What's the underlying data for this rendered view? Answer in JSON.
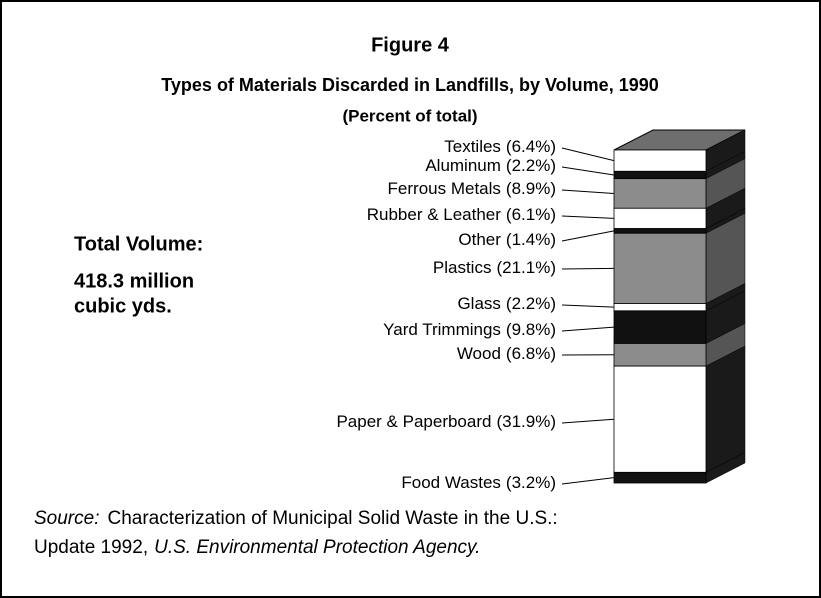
{
  "chart_data": {
    "type": "stacked-bar-3d",
    "title": "Figure 4",
    "subtitle": "Types of Materials Discarded in Landfills, by Volume, 1990",
    "unit_note": "(Percent of total)",
    "annotation": [
      "Total Volume:",
      "418.3 million",
      "cubic yds."
    ],
    "categories": [
      "Textiles",
      "Aluminum",
      "Ferrous Metals",
      "Rubber & Leather",
      "Other",
      "Plastics",
      "Glass",
      "Yard Trimmings",
      "Wood",
      "Paper & Paperboard",
      "Food Wastes"
    ],
    "values": [
      6.4,
      2.2,
      8.9,
      6.1,
      1.4,
      21.1,
      2.2,
      9.8,
      6.8,
      31.9,
      3.2
    ],
    "value_labels": [
      "(6.4%)",
      "(2.2%)",
      "(8.9%)",
      "(6.1%)",
      "(1.4%)",
      "(21.1%)",
      "(2.2%)",
      "(9.8%)",
      "(6.8%)",
      "(31.9%)",
      "(3.2%)"
    ],
    "colors": [
      "#ffffff",
      "#111111",
      "#8c8c8c",
      "#ffffff",
      "#111111",
      "#8c8c8c",
      "#ffffff",
      "#111111",
      "#8c8c8c",
      "#ffffff",
      "#111111"
    ],
    "ylim": [
      0,
      100
    ],
    "source": {
      "lead": "Source:",
      "line1": "Characterization of Municipal Solid Waste in the U.S.:",
      "line2": "Update 1992,",
      "agency": "U.S. Environmental Protection Agency."
    }
  }
}
